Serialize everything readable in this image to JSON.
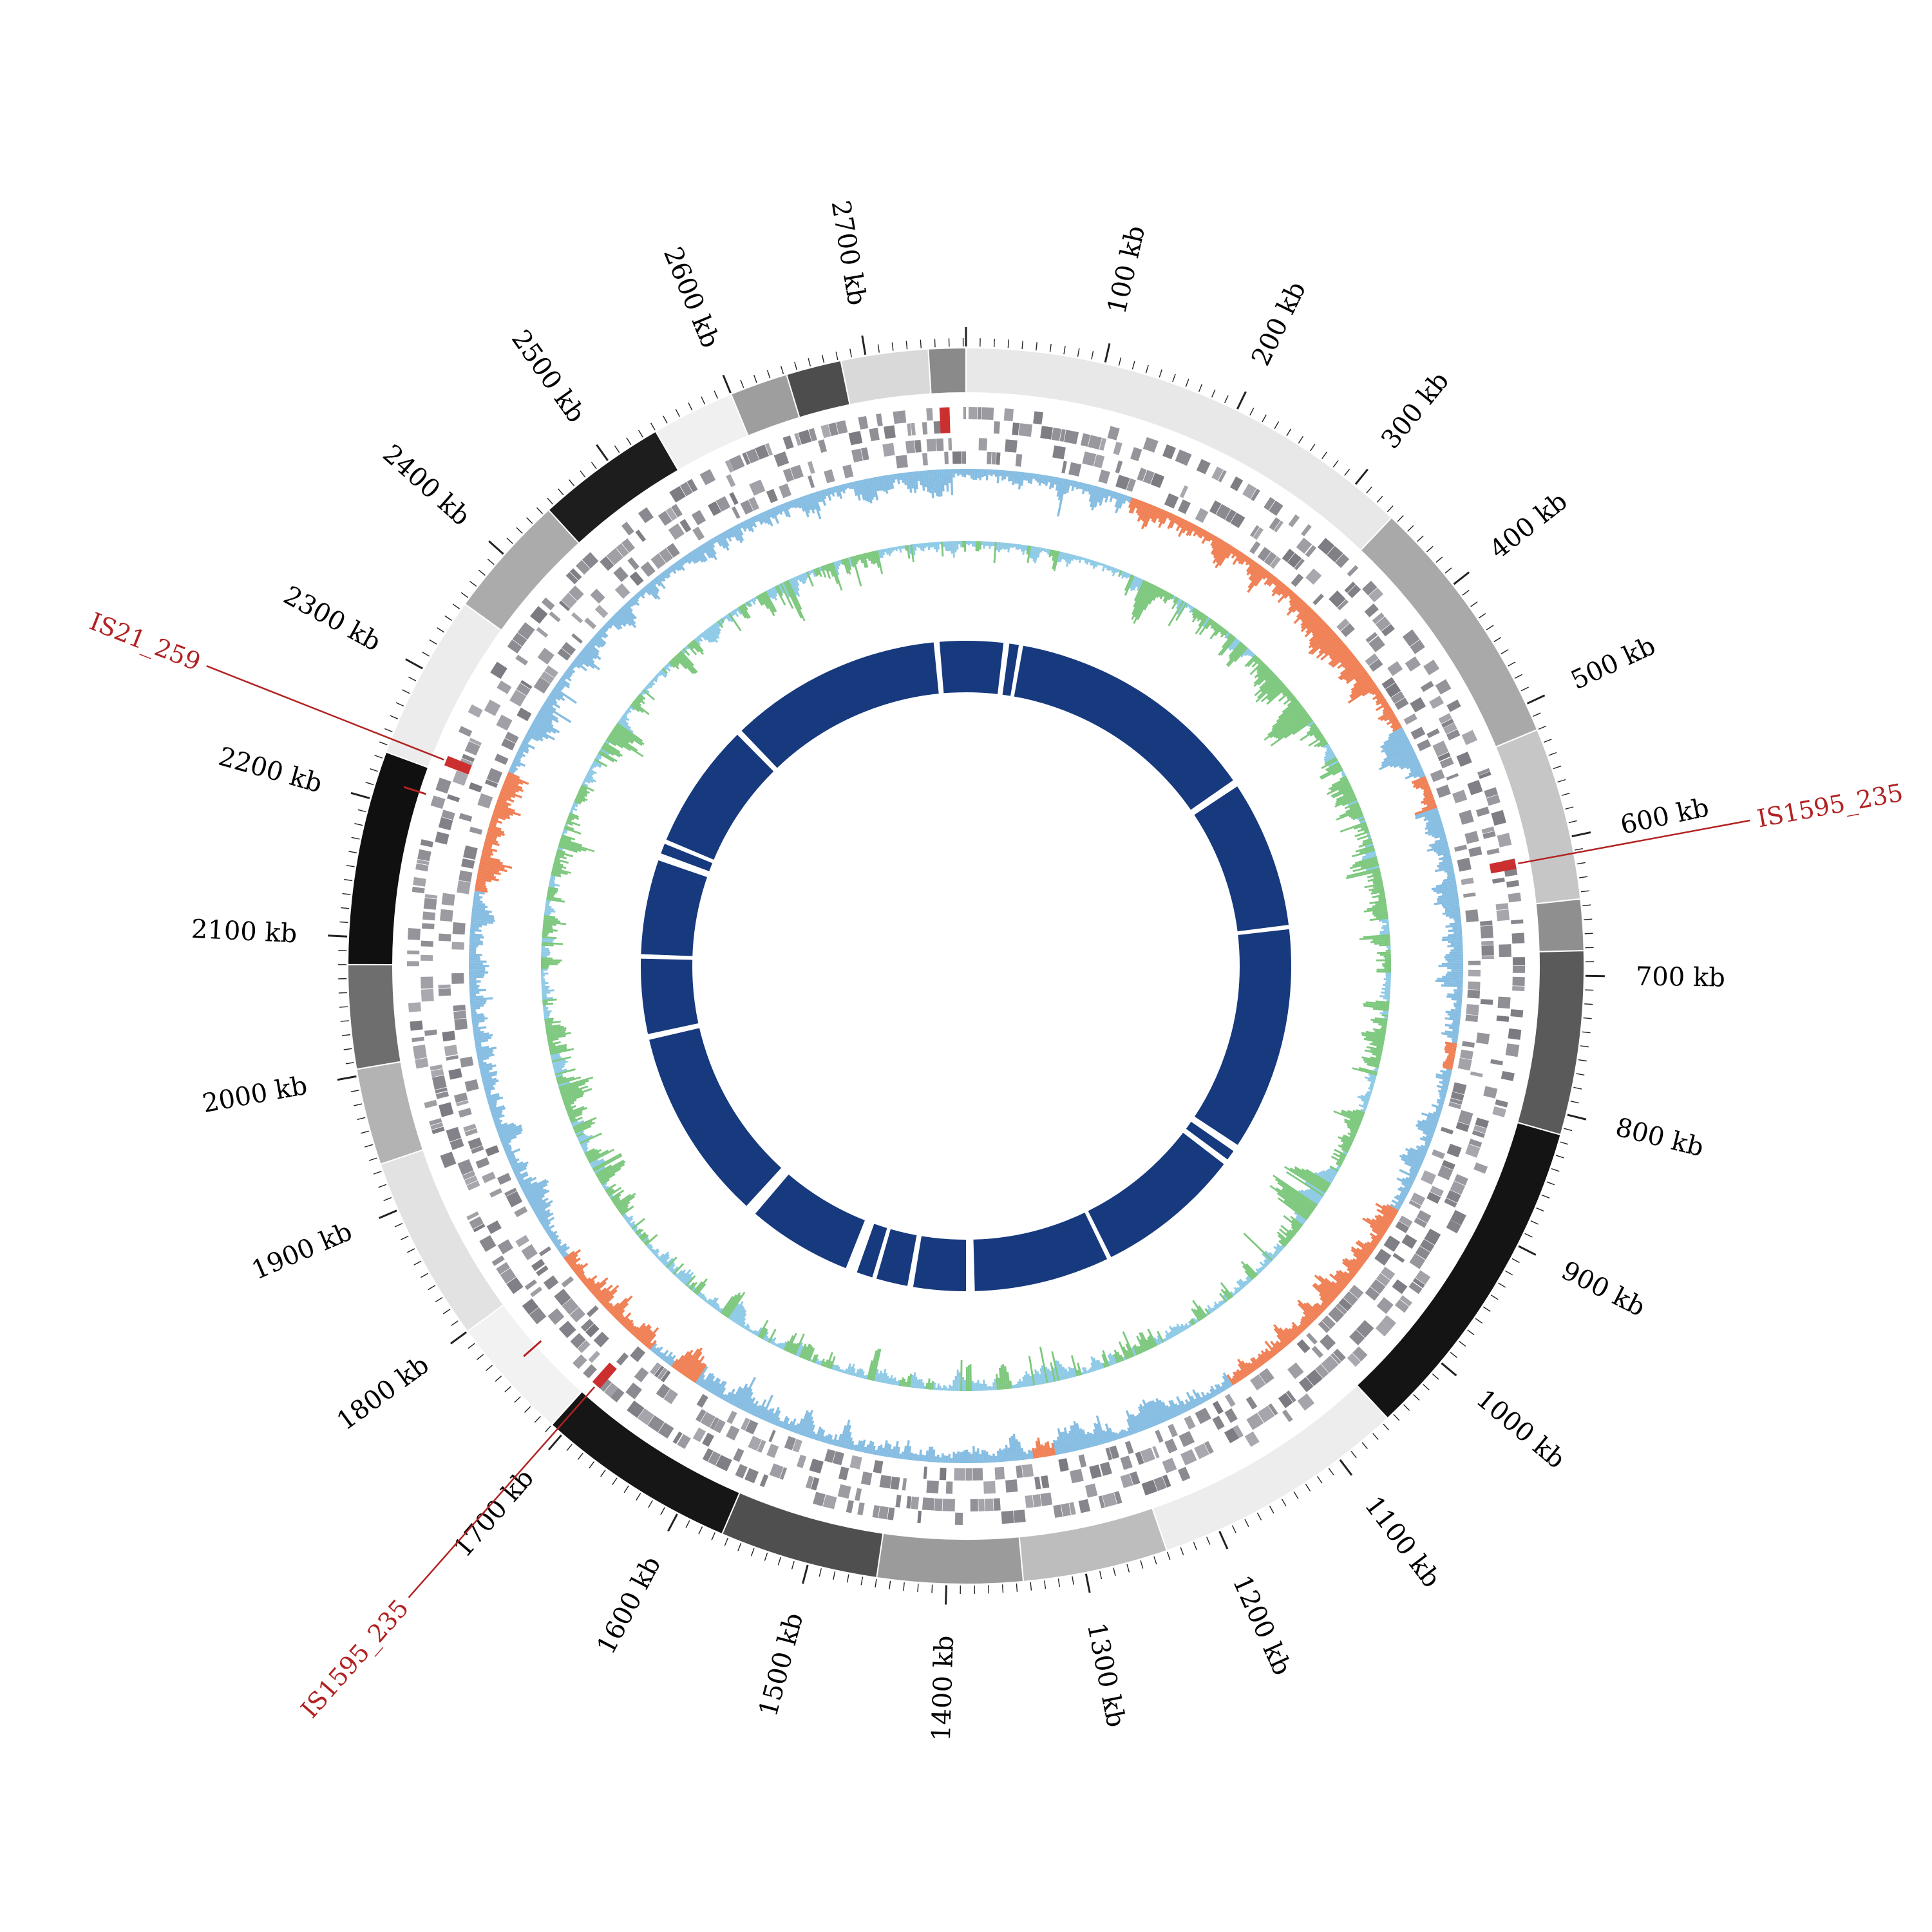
{
  "chart_data": {
    "type": "circular-genome-plot",
    "total_length_kb": 2772,
    "unit": "kb",
    "ticks": {
      "interval_kb": 100,
      "minor_interval_kb": 10,
      "labels": [
        "100 kb",
        "200 kb",
        "300 kb",
        "400 kb",
        "500 kb",
        "600 kb",
        "700 kb",
        "800 kb",
        "900 kb",
        "1000 kb",
        "1100 kb",
        "1200 kb",
        "1300 kb",
        "1400 kb",
        "1500 kb",
        "1600 kb",
        "1700 kb",
        "1800 kb",
        "1900 kb",
        "2000 kb",
        "2100 kb",
        "2200 kb",
        "2300 kb",
        "2400 kb",
        "2500 kb",
        "2600 kb",
        "2700 kb"
      ]
    },
    "rings": {
      "ideogram": {
        "outer_r": 960,
        "inner_r": 890,
        "segments": [
          [
            0,
            335,
            "#e8e8e8"
          ],
          [
            335,
            520,
            "#a9a9a9"
          ],
          [
            520,
            645,
            "#c6c6c6"
          ],
          [
            645,
            682,
            "#8f8f8f"
          ],
          [
            682,
            815,
            "#5a5a5a"
          ],
          [
            815,
            1055,
            "#141414"
          ],
          [
            1055,
            1240,
            "#ededed"
          ],
          [
            1240,
            1345,
            "#bdbdbd"
          ],
          [
            1345,
            1450,
            "#9b9b9b"
          ],
          [
            1450,
            1565,
            "#4f4f4f"
          ],
          [
            1565,
            1710,
            "#161616"
          ],
          [
            1710,
            1800,
            "#f2f2f2"
          ],
          [
            1800,
            1935,
            "#e2e2e2"
          ],
          [
            1935,
            2005,
            "#b3b3b3"
          ],
          [
            2005,
            2080,
            "#6e6e6e"
          ],
          [
            2080,
            2235,
            "#101010"
          ],
          [
            2235,
            2355,
            "#ececec"
          ],
          [
            2355,
            2445,
            "#ababab"
          ],
          [
            2445,
            2540,
            "#1d1d1d"
          ],
          [
            2540,
            2600,
            "#f0f0f0"
          ],
          [
            2600,
            2642,
            "#9e9e9e"
          ],
          [
            2642,
            2682,
            "#4d4d4d"
          ],
          [
            2682,
            2745,
            "#d9d9d9"
          ],
          [
            2745,
            2772,
            "#8a8a8a"
          ]
        ]
      },
      "gene_track_outer": {
        "outer_r": 868,
        "inner_r": 828,
        "seed": 11,
        "red_markers_kb": [
          612,
          1705,
          2245,
          2755
        ]
      },
      "gene_track_inner": {
        "outer_r": 820,
        "inner_r": 780,
        "seed": 13,
        "red_markers_kb": []
      },
      "deviation_track": {
        "outer_r": 772,
        "max_depth": 75,
        "positive_color": "#86bde2",
        "negative_color": "#f08055",
        "negative_zones_kb": [
          [
            150,
            470
          ],
          [
            520,
            548
          ],
          [
            762,
            784
          ],
          [
            920,
            1135
          ],
          [
            1305,
            1325
          ],
          [
            1640,
            1665
          ],
          [
            1690,
            1800
          ],
          [
            2145,
            2255
          ]
        ],
        "seed": 21
      },
      "skew_track": {
        "outer_r": 660,
        "blue_depth": 45,
        "green_depth": 72,
        "blue_color": "#8ecae6",
        "green_color": "#7dc87e",
        "seed": 31
      },
      "contig_ring": {
        "outer_r": 505,
        "inner_r": 425,
        "color": "#173a7e",
        "gaps_kb": [
          [
            55,
            8
          ],
          [
            75,
            6
          ],
          [
            430,
            10
          ],
          [
            640,
            6
          ],
          [
            955,
            10
          ],
          [
            978,
            8
          ],
          [
            1185,
            6
          ],
          [
            1380,
            12
          ],
          [
            1462,
            8
          ],
          [
            1512,
            6
          ],
          [
            1545,
            16
          ],
          [
            1705,
            16
          ],
          [
            1982,
            8
          ],
          [
            2092,
            6
          ],
          [
            2230,
            10
          ],
          [
            2252,
            6
          ],
          [
            2432,
            8
          ],
          [
            2732,
            8
          ]
        ]
      }
    },
    "annotations": [
      {
        "label": "IS21_259",
        "position_kb": 2245,
        "label_radius": 1280
      },
      {
        "label": "IS1595_235",
        "position_kb": 612,
        "label_radius": 1250
      },
      {
        "label": "IS1595_235",
        "position_kb": 1705,
        "label_radius": 1320
      }
    ],
    "red_dashes_kb": [
      2215,
      1760
    ],
    "colors": {
      "tick": "#222222",
      "label": "#000000",
      "annotation": "#b22222",
      "gene_tile_red": "#cc2f2f",
      "background": "#ffffff"
    }
  }
}
